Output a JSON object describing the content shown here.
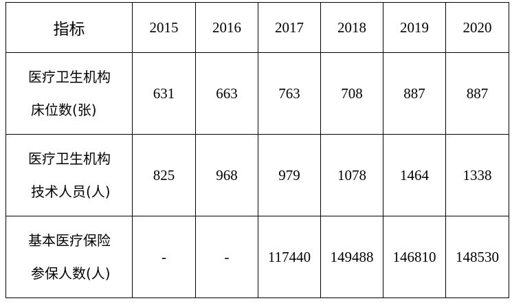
{
  "table": {
    "header": {
      "indicator": "指标",
      "years": [
        "2015",
        "2016",
        "2017",
        "2018",
        "2019",
        "2020"
      ]
    },
    "rows": [
      {
        "label_line1": "医疗卫生机构",
        "label_line2": "床位数(张)",
        "values": [
          "631",
          "663",
          "763",
          "708",
          "887",
          "887"
        ]
      },
      {
        "label_line1": "医疗卫生机构",
        "label_line2": "技术人员(人)",
        "values": [
          "825",
          "968",
          "979",
          "1078",
          "1464",
          "1338"
        ]
      },
      {
        "label_line1": "基本医疗保险",
        "label_line2": "参保人数(人)",
        "values": [
          "-",
          "-",
          "117440",
          "149488",
          "146810",
          "148530"
        ]
      }
    ]
  }
}
